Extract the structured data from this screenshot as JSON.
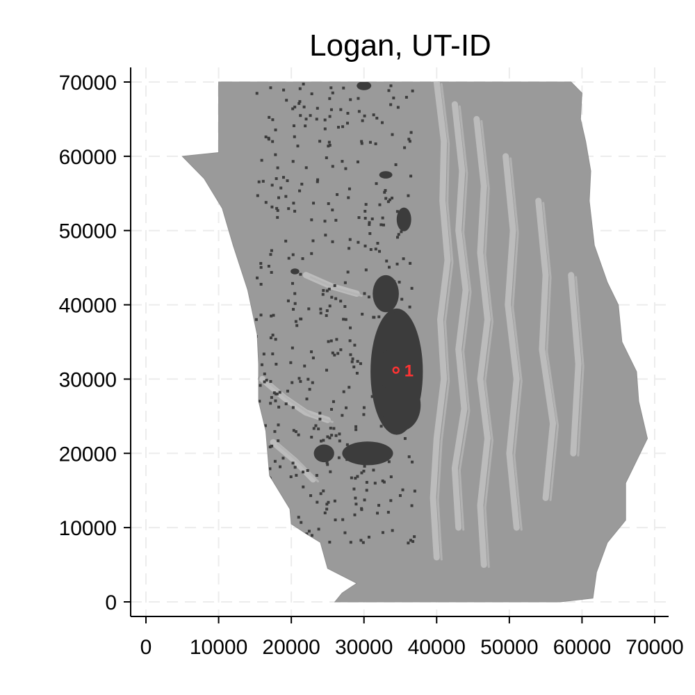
{
  "chart_data": {
    "type": "map",
    "title": "Logan, UT-ID",
    "xlim": [
      0,
      72000
    ],
    "ylim": [
      0,
      72000
    ],
    "x_ticks": [
      0,
      10000,
      20000,
      30000,
      40000,
      50000,
      60000,
      70000
    ],
    "y_ticks": [
      0,
      10000,
      20000,
      30000,
      40000,
      50000,
      60000,
      70000
    ],
    "x_tick_labels": [
      "0",
      "10000",
      "20000",
      "30000",
      "40000",
      "50000",
      "60000",
      "70000"
    ],
    "y_tick_labels": [
      "0",
      "10000",
      "20000",
      "30000",
      "40000",
      "50000",
      "60000",
      "70000"
    ],
    "grid": true,
    "region_boundary": [
      [
        10000,
        70000
      ],
      [
        29000,
        70000
      ],
      [
        54000,
        70000
      ],
      [
        58500,
        70000
      ],
      [
        60000,
        68500
      ],
      [
        59800,
        65000
      ],
      [
        60500,
        62000
      ],
      [
        61200,
        58000
      ],
      [
        61000,
        54000
      ],
      [
        61700,
        48000
      ],
      [
        63500,
        43000
      ],
      [
        65000,
        40000
      ],
      [
        65500,
        35000
      ],
      [
        67500,
        31000
      ],
      [
        67800,
        27000
      ],
      [
        69000,
        22000
      ],
      [
        66000,
        16000
      ],
      [
        66000,
        11000
      ],
      [
        63500,
        8000
      ],
      [
        62000,
        4000
      ],
      [
        61500,
        500
      ],
      [
        57000,
        0
      ],
      [
        26000,
        0
      ],
      [
        27000,
        1200
      ],
      [
        29000,
        2500
      ],
      [
        25000,
        4500
      ],
      [
        24000,
        8000
      ],
      [
        22000,
        9200
      ],
      [
        20000,
        10500
      ],
      [
        19800,
        12500
      ],
      [
        17000,
        17000
      ],
      [
        16500,
        23000
      ],
      [
        15500,
        27000
      ],
      [
        15500,
        32000
      ],
      [
        15300,
        36000
      ],
      [
        14000,
        42000
      ],
      [
        12000,
        48000
      ],
      [
        10500,
        53000
      ],
      [
        8000,
        57000
      ],
      [
        5000,
        60000
      ],
      [
        10000,
        60500
      ],
      [
        10000,
        70000
      ]
    ],
    "mountain_ridges": [
      [
        [
          40000,
          70000
        ],
        [
          41000,
          62000
        ],
        [
          40800,
          54000
        ],
        [
          41500,
          46000
        ],
        [
          40500,
          38000
        ],
        [
          41000,
          30000
        ],
        [
          40000,
          22000
        ],
        [
          39500,
          14000
        ],
        [
          40000,
          6000
        ]
      ],
      [
        [
          42500,
          67000
        ],
        [
          43500,
          58000
        ],
        [
          43000,
          50000
        ],
        [
          44000,
          42000
        ],
        [
          43000,
          34000
        ],
        [
          43800,
          26000
        ],
        [
          42500,
          18000
        ],
        [
          43000,
          10000
        ]
      ],
      [
        [
          45500,
          65000
        ],
        [
          46500,
          56000
        ],
        [
          46000,
          47000
        ],
        [
          47000,
          38000
        ],
        [
          46000,
          30000
        ],
        [
          47000,
          22000
        ],
        [
          46000,
          13000
        ],
        [
          46500,
          5000
        ]
      ],
      [
        [
          49500,
          60000
        ],
        [
          50500,
          50000
        ],
        [
          49800,
          40000
        ],
        [
          51000,
          30000
        ],
        [
          50000,
          20000
        ],
        [
          51000,
          10000
        ]
      ],
      [
        [
          54000,
          54000
        ],
        [
          55000,
          44000
        ],
        [
          54500,
          34000
        ],
        [
          56000,
          24000
        ],
        [
          55000,
          14000
        ]
      ],
      [
        [
          58500,
          44000
        ],
        [
          59500,
          32000
        ],
        [
          58800,
          20000
        ]
      ],
      [
        [
          16000,
          30000
        ],
        [
          19000,
          27500
        ],
        [
          22000,
          25500
        ],
        [
          25000,
          24500
        ]
      ],
      [
        [
          17500,
          21500
        ],
        [
          20500,
          19000
        ],
        [
          23000,
          16500
        ]
      ],
      [
        [
          22000,
          44000
        ],
        [
          25500,
          42500
        ],
        [
          29000,
          41500
        ]
      ]
    ],
    "urban_areas": [
      {
        "center": [
          34500,
          31000
        ],
        "rx": 3600,
        "ry": 8500
      },
      {
        "center": [
          33000,
          41500
        ],
        "rx": 1800,
        "ry": 2500
      },
      {
        "center": [
          35000,
          26500
        ],
        "rx": 2800,
        "ry": 3500
      },
      {
        "center": [
          30500,
          20000
        ],
        "rx": 3500,
        "ry": 1600
      },
      {
        "center": [
          24500,
          20000
        ],
        "rx": 1400,
        "ry": 1200
      },
      {
        "center": [
          35500,
          51500
        ],
        "rx": 1000,
        "ry": 1600
      },
      {
        "center": [
          30000,
          69500
        ],
        "rx": 1000,
        "ry": 600
      },
      {
        "center": [
          33000,
          57500
        ],
        "rx": 900,
        "ry": 500
      },
      {
        "center": [
          20500,
          44500
        ],
        "rx": 600,
        "ry": 400
      }
    ],
    "markers": [
      {
        "label": "1",
        "x": 34400,
        "y": 31200,
        "color": "#ff3333"
      }
    ]
  }
}
